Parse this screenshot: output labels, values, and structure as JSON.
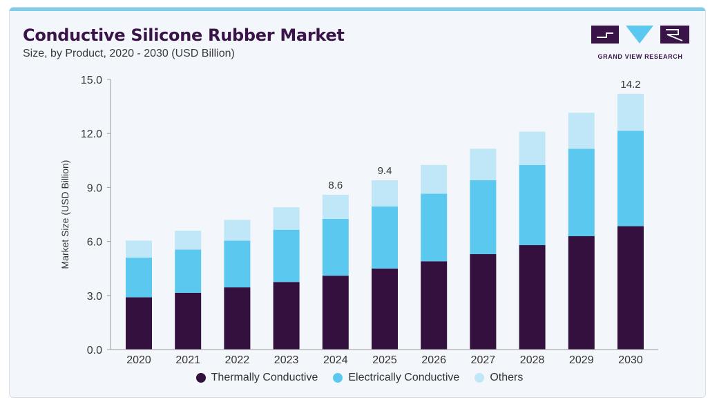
{
  "header": {
    "title": "Conductive Silicone Rubber Market",
    "subtitle": "Size, by Product, 2020 - 2030 (USD Billion)"
  },
  "brand": {
    "name": "GRAND VIEW RESEARCH",
    "colors": {
      "dark": "#3a1448",
      "accent": "#5bc8f0",
      "topbar": "#7ecbea"
    }
  },
  "chart_data": {
    "type": "bar",
    "stacked": true,
    "categories": [
      "2020",
      "2021",
      "2022",
      "2023",
      "2024",
      "2025",
      "2026",
      "2027",
      "2028",
      "2029",
      "2030"
    ],
    "series": [
      {
        "name": "Thermally Conductive",
        "color": "#34103f",
        "values": [
          2.9,
          3.15,
          3.45,
          3.75,
          4.1,
          4.5,
          4.9,
          5.3,
          5.8,
          6.3,
          6.85
        ]
      },
      {
        "name": "Electrically Conductive",
        "color": "#5bc8f0",
        "values": [
          2.2,
          2.4,
          2.6,
          2.9,
          3.15,
          3.45,
          3.75,
          4.1,
          4.45,
          4.85,
          5.3
        ]
      },
      {
        "name": "Others",
        "color": "#bfe7f8",
        "values": [
          0.95,
          1.05,
          1.15,
          1.25,
          1.35,
          1.45,
          1.6,
          1.75,
          1.85,
          2.0,
          2.05
        ]
      }
    ],
    "data_labels": [
      {
        "category": "2024",
        "text": "8.6"
      },
      {
        "category": "2025",
        "text": "9.4"
      },
      {
        "category": "2030",
        "text": "14.2"
      }
    ],
    "ylabel": "Market Size (USD Billion)",
    "xlabel": "",
    "ylim": [
      0,
      15
    ],
    "yticks": [
      "0.0",
      "3.0",
      "6.0",
      "9.0",
      "12.0",
      "15.0"
    ],
    "grid": false,
    "legend_position": "bottom-center"
  }
}
